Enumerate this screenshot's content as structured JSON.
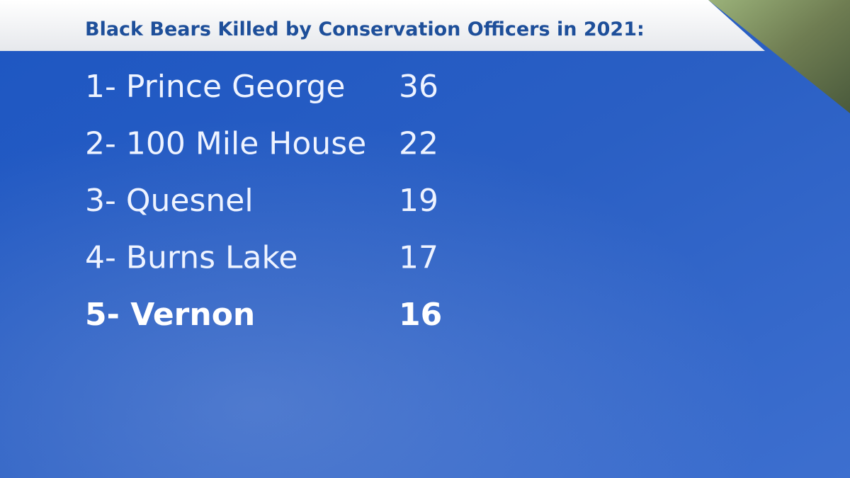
{
  "header": {
    "title": "Black Bears Killed by Conservation Officers in 2021:"
  },
  "rows": [
    {
      "label": "1- Prince George",
      "value": 36
    },
    {
      "label": "2- 100 Mile House",
      "value": 22
    },
    {
      "label": "3- Quesnel",
      "value": 19
    },
    {
      "label": "4- Burns Lake",
      "value": 17
    },
    {
      "label": "5- Vernon",
      "value": 16
    }
  ]
}
